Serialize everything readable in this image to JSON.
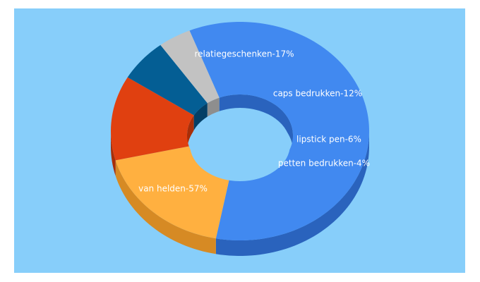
{
  "colors": {
    "background": "#87cefa",
    "page": "#ffffff"
  },
  "chart_data": {
    "type": "pie",
    "variant": "3d-donut",
    "title": "",
    "legend": "none",
    "slices": [
      {
        "label": "van helden-57%",
        "category": "van helden",
        "value": 57,
        "color": "#4189f0",
        "shade": "#2a63bd"
      },
      {
        "label": "relatiegeschenken-17%",
        "category": "relatiegeschenken",
        "value": 17,
        "color": "#ffb040",
        "shade": "#d68a24"
      },
      {
        "label": "caps bedrukken-12%",
        "category": "caps bedrukken",
        "value": 12,
        "color": "#e04010",
        "shade": "#a82e08"
      },
      {
        "label": "lipstick pen-6%",
        "category": "lipstick pen",
        "value": 6,
        "color": "#045e94",
        "shade": "#033f66"
      },
      {
        "label": "petten bedrukken-4%",
        "category": "petten bedrukken",
        "value": 4,
        "color": "#c2c2c2",
        "shade": "#8e8e8e"
      }
    ]
  }
}
